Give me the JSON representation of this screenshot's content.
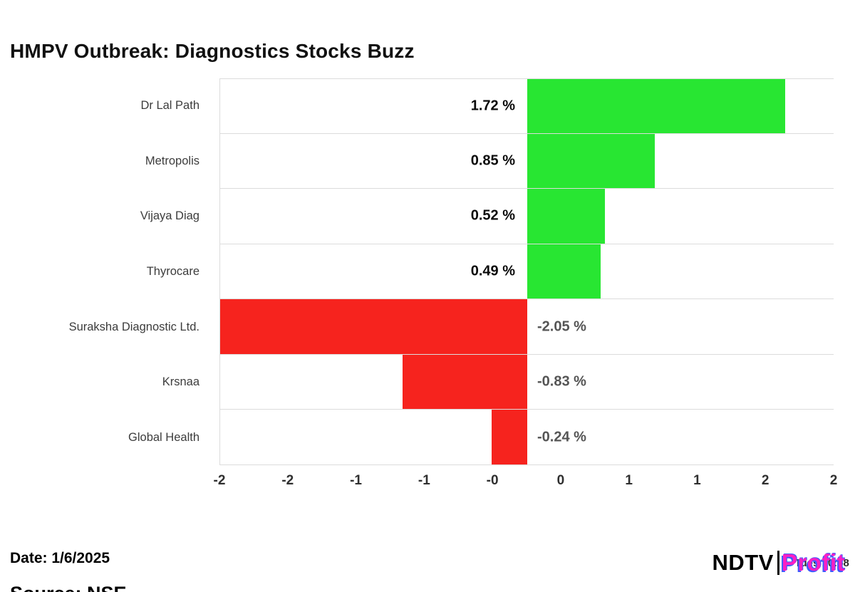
{
  "title": "HMPV Outbreak: Diagnostics Stocks Buzz",
  "date_label": "Date: 1/6/2025",
  "source_label": "Source: NSE",
  "logo": {
    "ndtv": "NDTV",
    "profit": "Profit",
    "overlay_text": "Tues 10:58"
  },
  "colors": {
    "positive_bar": "#28E632",
    "negative_bar": "#F6231E",
    "gridline": "#DCDCDC",
    "category_label": "#3C3C3C",
    "positive_value_label": "#0A0A0A",
    "negative_value_label": "#555555",
    "profit_magenta": "#FF1FC4",
    "profit_blue": "#3D5AFE"
  },
  "chart_data": {
    "type": "bar",
    "orientation": "horizontal",
    "title": "HMPV Outbreak: Diagnostics Stocks Buzz",
    "categories": [
      "Dr Lal Path",
      "Metropolis",
      "Vijaya Diag",
      "Thyrocare",
      "Suraksha Diagnostic Ltd.",
      "Krsnaa",
      "Global Health"
    ],
    "values": [
      1.72,
      0.85,
      0.52,
      0.49,
      -2.05,
      -0.83,
      -0.24
    ],
    "value_labels": [
      "1.72 %",
      "0.85 %",
      "0.52 %",
      "0.49 %",
      "-2.05 %",
      "-0.83 %",
      "-0.24 %"
    ],
    "x_tick_labels": [
      "-2",
      "-2",
      "-1",
      "-1",
      "-0",
      "0",
      "1",
      "1",
      "2",
      "2"
    ],
    "xlim": [
      -2.05,
      2.05
    ],
    "xlabel": "",
    "ylabel": "",
    "grid": "horizontal row separators",
    "legend": "none",
    "unit": "percent change"
  }
}
